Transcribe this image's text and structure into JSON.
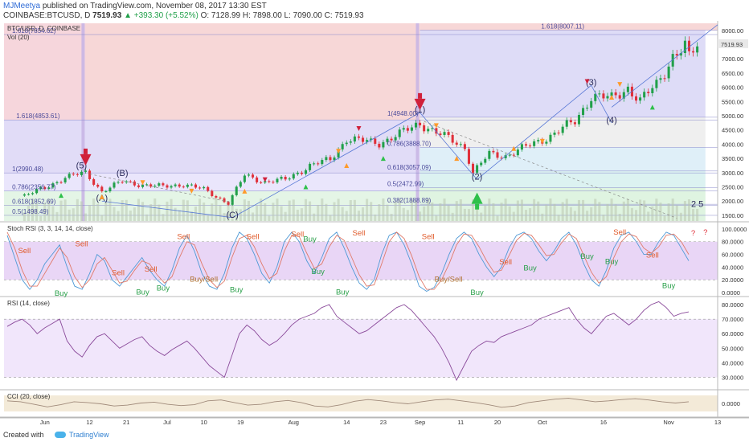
{
  "header": {
    "author": "MJMeetya",
    "published_text": "published on TradingView.com, November 08, 2017 13:30 EST",
    "symbol": "COINBASE:BTCUSD, D",
    "price": "7519.93",
    "change": "▲ +393.30 (+5.52%)",
    "ohlc": "O: 7128.99 H: 7898.00 L: 7090.00 C: 7519.93"
  },
  "footer": {
    "made_with": "Created with",
    "brand": "TradingView"
  },
  "colors": {
    "up": "#21a04a",
    "down": "#e0303a",
    "buy_arrow": "#2ec04a",
    "sell_arrow": "#d0203a",
    "accent": "#ff9a2a"
  },
  "chart_data": [
    {
      "type": "candlestick",
      "title": "BTC/USD, D, COINBASE",
      "indicator": "Vol (20)",
      "last_price_label": "7519.93",
      "ylim": [
        1300,
        8250
      ],
      "y_ticks": [
        "8000.00",
        "7500.00",
        "7000.00",
        "6500.00",
        "6000.00",
        "5500.00",
        "5000.00",
        "4500.00",
        "4000.00",
        "3500.00",
        "3000.00",
        "2500.00",
        "2000.00",
        "1500.00"
      ],
      "x_ticks": [
        "Jun",
        "12",
        "21",
        "Jul",
        "10",
        "19",
        "Aug",
        "14",
        "23",
        "Sep",
        "11",
        "20",
        "Oct",
        "16",
        "Nov",
        "13"
      ],
      "close_anchors": [
        {
          "date": "2017-05-27",
          "close": 2200
        },
        {
          "date": "2017-06-01",
          "close": 2450
        },
        {
          "date": "2017-06-06",
          "close": 2850
        },
        {
          "date": "2017-06-11",
          "close": 2980
        },
        {
          "date": "2017-06-15",
          "close": 2350
        },
        {
          "date": "2017-06-20",
          "close": 2680
        },
        {
          "date": "2017-06-25",
          "close": 2580
        },
        {
          "date": "2017-06-30",
          "close": 2500
        },
        {
          "date": "2017-07-05",
          "close": 2600
        },
        {
          "date": "2017-07-10",
          "close": 2400
        },
        {
          "date": "2017-07-16",
          "close": 1930
        },
        {
          "date": "2017-07-20",
          "close": 2900
        },
        {
          "date": "2017-07-25",
          "close": 2680
        },
        {
          "date": "2017-07-30",
          "close": 2750
        },
        {
          "date": "2017-08-05",
          "close": 3250
        },
        {
          "date": "2017-08-10",
          "close": 3450
        },
        {
          "date": "2017-08-14",
          "close": 4200
        },
        {
          "date": "2017-08-18",
          "close": 4100
        },
        {
          "date": "2017-08-22",
          "close": 4050
        },
        {
          "date": "2017-08-27",
          "close": 4350
        },
        {
          "date": "2017-09-01",
          "close": 4750
        },
        {
          "date": "2017-09-05",
          "close": 4400
        },
        {
          "date": "2017-09-08",
          "close": 4200
        },
        {
          "date": "2017-09-12",
          "close": 3900
        },
        {
          "date": "2017-09-14",
          "close": 3000
        },
        {
          "date": "2017-09-18",
          "close": 3650
        },
        {
          "date": "2017-09-22",
          "close": 3600
        },
        {
          "date": "2017-09-27",
          "close": 3900
        },
        {
          "date": "2017-10-03",
          "close": 4300
        },
        {
          "date": "2017-10-09",
          "close": 4800
        },
        {
          "date": "2017-10-13",
          "close": 5700
        },
        {
          "date": "2017-10-18",
          "close": 5600
        },
        {
          "date": "2017-10-22",
          "close": 6000
        },
        {
          "date": "2017-10-25",
          "close": 5500
        },
        {
          "date": "2017-10-29",
          "close": 6100
        },
        {
          "date": "2017-11-02",
          "close": 7100
        },
        {
          "date": "2017-11-05",
          "close": 7400
        },
        {
          "date": "2017-11-06",
          "close": 7000
        },
        {
          "date": "2017-11-08",
          "close": 7520
        }
      ],
      "fib_labels": [
        {
          "text": "1.618(8007.11)",
          "price": 8007.11
        },
        {
          "text": "1.618(7854.62)",
          "price": 7854.62
        },
        {
          "text": "1.618(4853.61)",
          "price": 4853.61
        },
        {
          "text": "1(4948.00)",
          "price": 4948.0
        },
        {
          "text": "0.786(3888.70)",
          "price": 3888.7
        },
        {
          "text": "0.618(3057.09)",
          "price": 3057.09
        },
        {
          "text": "0.5(2472.99)",
          "price": 2472.99
        },
        {
          "text": "0.382(1888.89)",
          "price": 1888.89
        },
        {
          "text": "1(2990.48)",
          "price": 2990.48
        },
        {
          "text": "0.786(2356.77)",
          "price": 2356.77
        },
        {
          "text": "0.618(1852.69)",
          "price": 1852.69
        },
        {
          "text": "0.5(1498.49)",
          "price": 1498.49
        }
      ],
      "wave_labels": [
        {
          "text": "(5)",
          "date": "2017-06-10",
          "price": 3150
        },
        {
          "text": "(A)",
          "date": "2017-06-15",
          "price": 2000
        },
        {
          "text": "(B)",
          "date": "2017-06-20",
          "price": 2880
        },
        {
          "text": "(C)",
          "date": "2017-07-17",
          "price": 1420
        },
        {
          "text": "(1)",
          "date": "2017-09-01",
          "price": 5110
        },
        {
          "text": "(2)",
          "date": "2017-09-15",
          "price": 2760
        },
        {
          "text": "(3)",
          "date": "2017-10-13",
          "price": 6070
        },
        {
          "text": "(4)",
          "date": "2017-10-18",
          "price": 4750
        },
        {
          "text": "2 5",
          "date": "2017-11-08",
          "price": 1800
        }
      ],
      "big_sell_arrows": [
        {
          "date": "2017-06-11",
          "price": 3450
        },
        {
          "date": "2017-09-01",
          "price": 5400
        }
      ],
      "big_buy_arrows": [
        {
          "date": "2017-09-15",
          "price": 2100
        }
      ]
    },
    {
      "type": "line",
      "title": "Stoch RSI (3, 3, 14, 14, close)",
      "ylim": [
        -5,
        110
      ],
      "y_ticks": [
        "100.0000",
        "80.0000",
        "60.0000",
        "40.0000",
        "20.0000",
        "0.0000"
      ],
      "bands": [
        20,
        80
      ],
      "series": [
        {
          "values": [
            90,
            55,
            20,
            5,
            20,
            45,
            60,
            75,
            40,
            10,
            5,
            30,
            60,
            50,
            20,
            10,
            25,
            40,
            55,
            35,
            20,
            10,
            35,
            70,
            90,
            65,
            30,
            10,
            5,
            30,
            70,
            95,
            85,
            60,
            30,
            15,
            40,
            80,
            95,
            80,
            50,
            30,
            55,
            85,
            95,
            70,
            40,
            15,
            5,
            20,
            60,
            90,
            95,
            75,
            45,
            10,
            2,
            8,
            30,
            60,
            85,
            95,
            85,
            60,
            40,
            25,
            40,
            70,
            90,
            95,
            85,
            65,
            50,
            65,
            85,
            95,
            75,
            45,
            20,
            10,
            35,
            70,
            90,
            95,
            80,
            60,
            60,
            80,
            95,
            90,
            70,
            50
          ]
        },
        {
          "values": [
            95,
            70,
            35,
            10,
            10,
            30,
            50,
            70,
            55,
            25,
            8,
            20,
            45,
            55,
            35,
            15,
            18,
            35,
            50,
            45,
            28,
            15,
            25,
            55,
            80,
            75,
            45,
            20,
            8,
            18,
            55,
            85,
            90,
            72,
            45,
            22,
            30,
            65,
            90,
            88,
            62,
            38,
            45,
            72,
            90,
            82,
            55,
            28,
            10,
            12,
            45,
            80,
            95,
            85,
            58,
            25,
            5,
            5,
            20,
            45,
            75,
            92,
            90,
            72,
            50,
            32,
            35,
            58,
            82,
            93,
            90,
            75,
            58,
            60,
            78,
            92,
            85,
            58,
            32,
            15,
            25,
            55,
            80,
            92,
            88,
            70,
            62,
            72,
            90,
            92,
            80,
            60
          ]
        }
      ],
      "signals": [
        {
          "text": "Sell",
          "date": "2017-05-27",
          "value": 62
        },
        {
          "text": "Sell",
          "date": "2017-06-10",
          "value": 73
        },
        {
          "text": "Buy",
          "date": "2017-06-05",
          "value": -5
        },
        {
          "text": "Sell",
          "date": "2017-06-19",
          "value": 27
        },
        {
          "text": "Sell",
          "date": "2017-06-27",
          "value": 33
        },
        {
          "text": "Buy",
          "date": "2017-06-25",
          "value": -3
        },
        {
          "text": "Buy",
          "date": "2017-06-30",
          "value": 3
        },
        {
          "text": "Sell",
          "date": "2017-07-05",
          "value": 84
        },
        {
          "text": "Buy/Sell",
          "date": "2017-07-10",
          "value": 17
        },
        {
          "text": "Buy",
          "date": "2017-07-18",
          "value": 1
        },
        {
          "text": "Sell",
          "date": "2017-07-22",
          "value": 84
        },
        {
          "text": "Sell",
          "date": "2017-08-02",
          "value": 88
        },
        {
          "text": "Buy",
          "date": "2017-08-05",
          "value": 80
        },
        {
          "text": "Buy",
          "date": "2017-08-07",
          "value": 29
        },
        {
          "text": "Sell",
          "date": "2017-08-17",
          "value": 90
        },
        {
          "text": "Buy",
          "date": "2017-08-13",
          "value": -3
        },
        {
          "text": "Sell",
          "date": "2017-09-03",
          "value": 84
        },
        {
          "text": "Buy/Sell",
          "date": "2017-09-08",
          "value": 17
        },
        {
          "text": "Buy",
          "date": "2017-09-15",
          "value": -4
        },
        {
          "text": "Sell",
          "date": "2017-09-22",
          "value": 44
        },
        {
          "text": "Buy",
          "date": "2017-09-28",
          "value": 35
        },
        {
          "text": "Buy",
          "date": "2017-10-12",
          "value": 53
        },
        {
          "text": "Sell",
          "date": "2017-10-20",
          "value": 91
        },
        {
          "text": "Buy",
          "date": "2017-10-18",
          "value": 45
        },
        {
          "text": "Sell",
          "date": "2017-10-28",
          "value": 55
        },
        {
          "text": "Buy",
          "date": "2017-11-01",
          "value": 7
        },
        {
          "text": "?",
          "date": "2017-11-07",
          "value": 90
        },
        {
          "text": "?",
          "date": "2017-11-10",
          "value": 91
        }
      ]
    },
    {
      "type": "line",
      "title": "RSI (14, close)",
      "ylim": [
        22,
        85
      ],
      "y_ticks": [
        "80.0000",
        "70.0000",
        "60.0000",
        "50.0000",
        "40.0000",
        "30.0000"
      ],
      "bands": [
        30,
        70
      ],
      "series": [
        {
          "values": [
            65,
            68,
            70,
            66,
            60,
            64,
            67,
            70,
            55,
            48,
            44,
            52,
            58,
            60,
            55,
            50,
            53,
            56,
            58,
            52,
            48,
            45,
            49,
            52,
            55,
            50,
            44,
            38,
            34,
            30,
            45,
            60,
            66,
            62,
            56,
            52,
            55,
            60,
            66,
            70,
            72,
            74,
            78,
            80,
            72,
            68,
            64,
            60,
            62,
            66,
            70,
            74,
            78,
            80,
            76,
            70,
            64,
            58,
            50,
            40,
            28,
            38,
            48,
            52,
            55,
            54,
            58,
            60,
            62,
            64,
            66,
            70,
            72,
            74,
            76,
            78,
            70,
            64,
            60,
            66,
            72,
            74,
            70,
            66,
            70,
            76,
            80,
            82,
            78,
            72,
            74,
            75
          ]
        }
      ]
    },
    {
      "type": "line",
      "title": "CCI (20, close)",
      "y_ticks": [
        "0.0000"
      ],
      "series": [
        {
          "values": [
            60,
            40,
            -20,
            -80,
            -30,
            40,
            20,
            -10,
            -60,
            -40,
            10,
            30,
            -20,
            -50,
            -30,
            60,
            80,
            20,
            -40,
            -20,
            40,
            70,
            20,
            -60,
            -80,
            -30,
            50,
            90,
            60,
            20,
            -10,
            40,
            80,
            100,
            60,
            20,
            -30,
            -90,
            -60,
            20,
            60,
            100,
            120,
            80,
            40,
            60,
            90,
            110,
            80,
            40,
            10,
            40
          ]
        }
      ]
    }
  ]
}
